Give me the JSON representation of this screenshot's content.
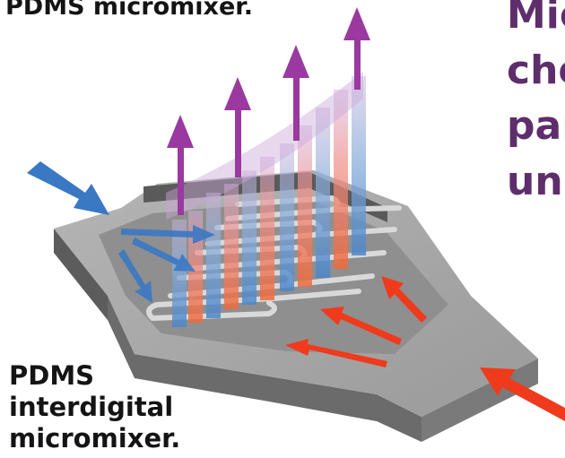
{
  "caption_top": "PDMS micromixer.",
  "caption_bottom": [
    "PDMS",
    "interdigital",
    "micromixer."
  ],
  "side_text": [
    "Mic",
    "che",
    "par",
    "unit"
  ],
  "colors": {
    "inlet_blue": "#3a78c4",
    "inlet_red": "#f03a1c",
    "outlet_purple": "#9a3aa0",
    "chip_top": "#a9a9a9",
    "chip_wall": "#6d6d6d",
    "channel": "#d8d8d8",
    "side_text": "#5e2e6c"
  },
  "icons": [
    "inlet-arrow-blue",
    "inlet-arrow-red",
    "outlet-arrow-purple"
  ]
}
